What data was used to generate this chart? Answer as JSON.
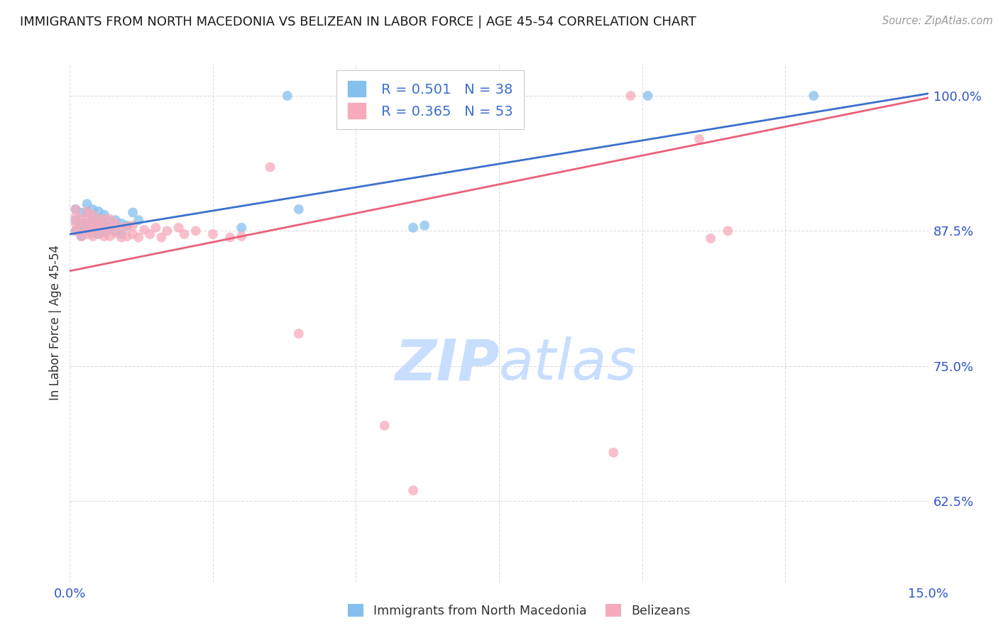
{
  "title": "IMMIGRANTS FROM NORTH MACEDONIA VS BELIZEAN IN LABOR FORCE | AGE 45-54 CORRELATION CHART",
  "source_text": "Source: ZipAtlas.com",
  "ylabel": "In Labor Force | Age 45-54",
  "xlim": [
    0.0,
    0.15
  ],
  "ylim": [
    0.55,
    1.03
  ],
  "yticks": [
    0.625,
    0.75,
    0.875,
    1.0
  ],
  "ytick_labels": [
    "62.5%",
    "75.0%",
    "87.5%",
    "100.0%"
  ],
  "xticks": [
    0.0,
    0.025,
    0.05,
    0.075,
    0.1,
    0.125,
    0.15
  ],
  "xtick_labels": [
    "0.0%",
    "",
    "",
    "",
    "",
    "",
    "15.0%"
  ],
  "blue_color": "#85BFEE",
  "pink_color": "#F7AABB",
  "blue_line_color": "#3B6FCC",
  "pink_line_color": "#E8607A",
  "legend_blue_R": "R = 0.501",
  "legend_blue_N": "N = 38",
  "legend_pink_R": "R = 0.365",
  "legend_pink_N": "N = 53",
  "title_color": "#1a1a1a",
  "axis_label_color": "#333333",
  "tick_color": "#3355CC",
  "grid_color": "#DDDDDD",
  "watermark_color": "#C8DEFF",
  "blue_x": [
    0.001,
    0.001,
    0.001,
    0.002,
    0.002,
    0.002,
    0.002,
    0.003,
    0.003,
    0.003,
    0.003,
    0.004,
    0.004,
    0.004,
    0.004,
    0.005,
    0.005,
    0.005,
    0.005,
    0.006,
    0.006,
    0.006,
    0.007,
    0.007,
    0.008,
    0.008,
    0.009,
    0.009,
    0.01,
    0.011,
    0.012,
    0.03,
    0.038,
    0.04,
    0.06,
    0.062,
    0.101,
    0.13
  ],
  "blue_y": [
    0.875,
    0.885,
    0.895,
    0.87,
    0.875,
    0.882,
    0.892,
    0.875,
    0.882,
    0.892,
    0.9,
    0.873,
    0.88,
    0.887,
    0.895,
    0.872,
    0.878,
    0.886,
    0.893,
    0.874,
    0.882,
    0.89,
    0.876,
    0.884,
    0.875,
    0.885,
    0.872,
    0.882,
    0.88,
    0.892,
    0.885,
    0.878,
    1.0,
    0.895,
    0.878,
    0.88,
    1.0,
    1.0
  ],
  "pink_x": [
    0.001,
    0.001,
    0.001,
    0.001,
    0.002,
    0.002,
    0.002,
    0.003,
    0.003,
    0.003,
    0.003,
    0.004,
    0.004,
    0.004,
    0.004,
    0.005,
    0.005,
    0.005,
    0.006,
    0.006,
    0.006,
    0.007,
    0.007,
    0.007,
    0.008,
    0.008,
    0.009,
    0.009,
    0.01,
    0.01,
    0.011,
    0.011,
    0.012,
    0.013,
    0.014,
    0.015,
    0.016,
    0.017,
    0.019,
    0.02,
    0.022,
    0.025,
    0.028,
    0.03,
    0.035,
    0.04,
    0.055,
    0.06,
    0.095,
    0.098,
    0.11,
    0.112,
    0.115
  ],
  "pink_y": [
    0.875,
    0.882,
    0.888,
    0.895,
    0.87,
    0.878,
    0.886,
    0.872,
    0.879,
    0.886,
    0.893,
    0.87,
    0.877,
    0.883,
    0.89,
    0.872,
    0.88,
    0.886,
    0.87,
    0.878,
    0.886,
    0.87,
    0.878,
    0.886,
    0.873,
    0.882,
    0.869,
    0.878,
    0.87,
    0.879,
    0.872,
    0.88,
    0.869,
    0.876,
    0.872,
    0.878,
    0.869,
    0.875,
    0.878,
    0.872,
    0.875,
    0.872,
    0.869,
    0.87,
    0.934,
    0.78,
    0.695,
    0.635,
    0.67,
    1.0,
    0.96,
    0.868,
    0.875
  ],
  "blue_line_x": [
    0.0,
    0.15
  ],
  "blue_line_y": [
    0.872,
    1.002
  ],
  "pink_line_x": [
    0.0,
    0.15
  ],
  "pink_line_y": [
    0.838,
    0.998
  ]
}
